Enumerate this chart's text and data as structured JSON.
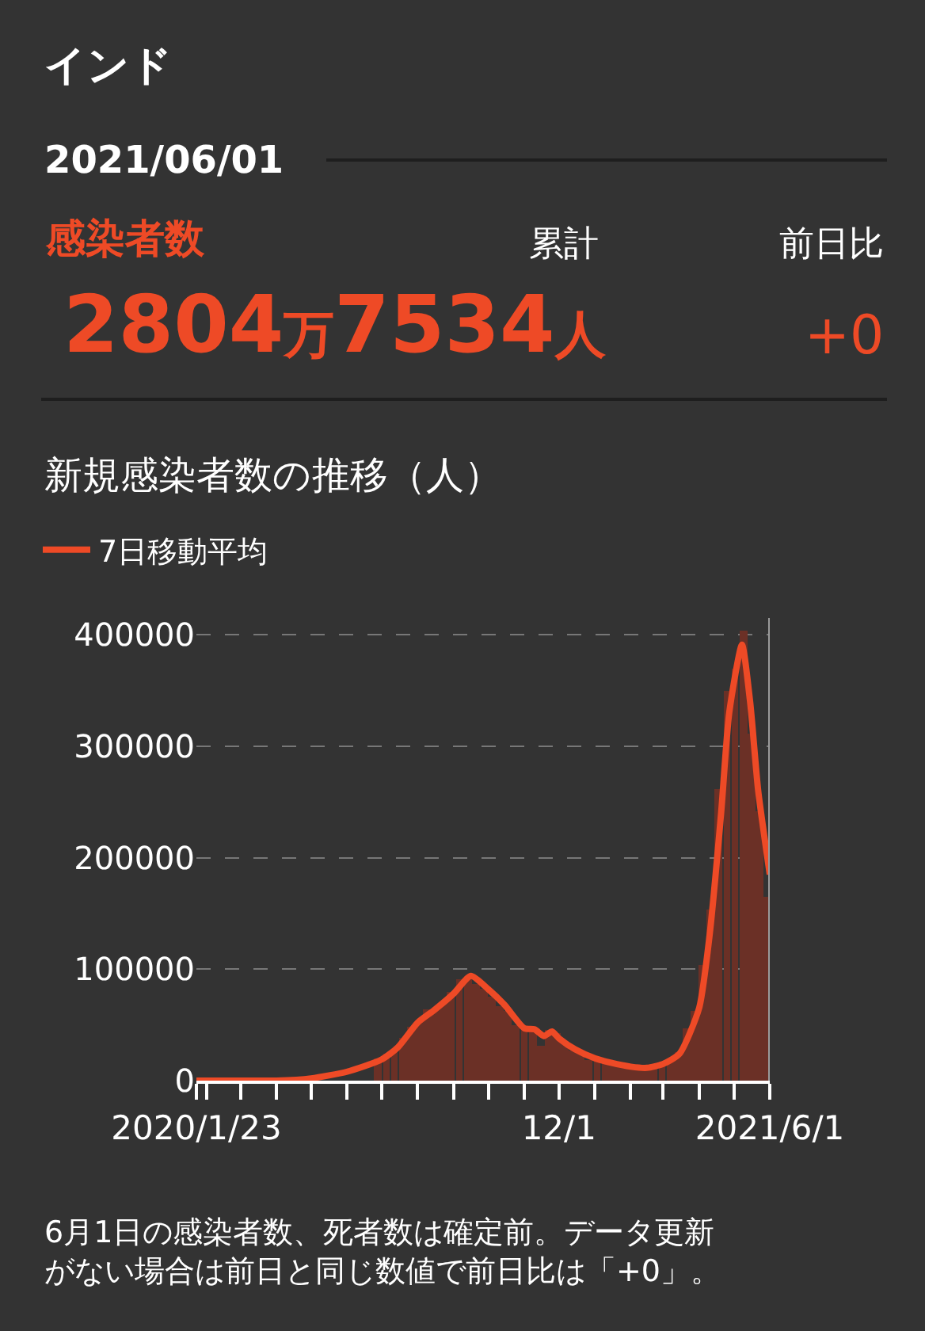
{
  "chart_data": {
    "type": "bar",
    "title": "インド",
    "subtitle": "2021/06/01",
    "annotations": [
      "感染者数",
      "累計",
      "前日比",
      "2804万7534人",
      "+0",
      "新規感染者数の推移（人）",
      "6月1日の感染者数、死者数は確定前。データ更新がない場合は前日と同じ数値で前日比は「+0」。"
    ],
    "series": [
      {
        "color": "#6b3026",
        "x": [
          "2020-06-28",
          "2020-07-05",
          "2020-07-12",
          "2020-07-19",
          "2020-07-26",
          "2020-08-02",
          "2020-08-09",
          "2020-08-16",
          "2020-08-23",
          "2020-08-30",
          "2020-09-06",
          "2020-09-13",
          "2020-09-20",
          "2020-09-27",
          "2020-10-04",
          "2020-10-11",
          "2020-10-18",
          "2020-10-25",
          "2020-11-01",
          "2020-11-08",
          "2020-11-15",
          "2020-11-22",
          "2020-11-29",
          "2020-12-06",
          "2020-12-13",
          "2020-12-20",
          "2020-12-27",
          "2021-01-03",
          "2021-01-10",
          "2021-01-17",
          "2021-01-24",
          "2021-01-31",
          "2021-02-07",
          "2021-02-14",
          "2021-02-21",
          "2021-02-28",
          "2021-03-07",
          "2021-03-14",
          "2021-03-21",
          "2021-03-28",
          "2021-04-04",
          "2021-04-11",
          "2021-04-18",
          "2021-04-25",
          "2021-05-02",
          "2021-05-09",
          "2021-05-16",
          "2021-05-23",
          "2021-05-30"
        ],
        "values": [
          20000,
          24000,
          29000,
          39000,
          49000,
          53000,
          64000,
          64000,
          69000,
          79000,
          91000,
          94000,
          87000,
          82000,
          76000,
          67000,
          62000,
          50000,
          47000,
          46000,
          31000,
          45000,
          42000,
          36000,
          27000,
          27000,
          19000,
          18000,
          19000,
          14000,
          15000,
          13000,
          12000,
          12000,
          14000,
          17000,
          19000,
          25000,
          47000,
          63000,
          104000,
          153000,
          262000,
          350000,
          370000,
          404000,
          311000,
          241000,
          165000
        ]
      },
      {
        "type": "line",
        "name": "7日移動平均",
        "color": "#ee4a26",
        "x": [
          "2020-01-23",
          "2020-03-15",
          "2020-04-01",
          "2020-05-01",
          "2020-06-01",
          "2020-07-01",
          "2020-07-15",
          "2020-08-01",
          "2020-08-15",
          "2020-09-01",
          "2020-09-16",
          "2020-10-01",
          "2020-10-15",
          "2020-11-01",
          "2020-11-10",
          "2020-11-18",
          "2020-11-25",
          "2020-12-01",
          "2020-12-15",
          "2021-01-01",
          "2021-01-15",
          "2021-02-01",
          "2021-02-15",
          "2021-03-01",
          "2021-03-15",
          "2021-04-01",
          "2021-04-10",
          "2021-04-20",
          "2021-04-27",
          "2021-05-08",
          "2021-05-15",
          "2021-05-22",
          "2021-06-01"
        ],
        "values": [
          0,
          0,
          0,
          2000,
          8000,
          19000,
          30000,
          52000,
          63000,
          78000,
          94000,
          82000,
          68000,
          47000,
          46000,
          40000,
          44000,
          38000,
          28000,
          20000,
          16000,
          12500,
          11500,
          15000,
          24000,
          65000,
          130000,
          240000,
          330000,
          391000,
          340000,
          260000,
          185000
        ]
      }
    ],
    "xlim": [
      "2020-01-23",
      "2021-06-01"
    ],
    "xticks": [
      {
        "value": "2020-01-23",
        "label": "2020/1/23"
      },
      {
        "value": "2020-02-01",
        "label": null
      },
      {
        "value": "2020-03-01",
        "label": null
      },
      {
        "value": "2020-04-01",
        "label": null
      },
      {
        "value": "2020-05-01",
        "label": null
      },
      {
        "value": "2020-06-01",
        "label": null
      },
      {
        "value": "2020-07-01",
        "label": null
      },
      {
        "value": "2020-08-01",
        "label": null
      },
      {
        "value": "2020-09-01",
        "label": null
      },
      {
        "value": "2020-10-01",
        "label": null
      },
      {
        "value": "2020-11-01",
        "label": null
      },
      {
        "value": "2020-12-01",
        "label": "12/1"
      },
      {
        "value": "2021-01-01",
        "label": null
      },
      {
        "value": "2021-02-01",
        "label": null
      },
      {
        "value": "2021-03-01",
        "label": null
      },
      {
        "value": "2021-04-01",
        "label": null
      },
      {
        "value": "2021-05-01",
        "label": null
      },
      {
        "value": "2021-06-01",
        "label": "2021/6/1"
      }
    ],
    "ylim": [
      0,
      415000
    ],
    "yticks": [
      0,
      100000,
      200000,
      300000,
      400000
    ],
    "ref_lines": [
      {
        "axis": "x",
        "value": "2021-06-01",
        "label": null,
        "color": "#9a9a9a"
      }
    ],
    "grid": "y",
    "legend": "top left",
    "marker": "none"
  }
}
